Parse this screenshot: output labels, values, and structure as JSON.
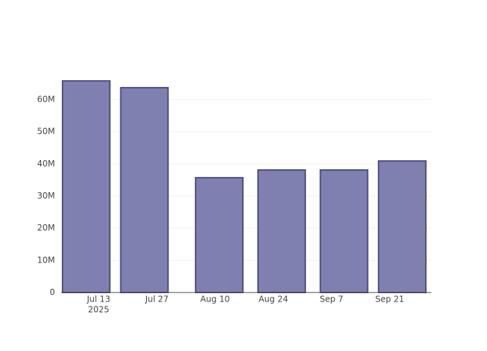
{
  "chart_data": {
    "type": "bar",
    "x": [
      "2025-07-10",
      "2025-07-24",
      "2025-08-11",
      "2025-08-26",
      "2025-09-10",
      "2025-09-24"
    ],
    "values": [
      65800000,
      63700000,
      35700000,
      38100000,
      38100000,
      40900000
    ],
    "color": "#7f7fb0",
    "edge_color": "#4a4a80",
    "xlim": [
      "2025-07-04",
      "2025-10-01"
    ],
    "xticks": [
      {
        "value": "2025-07-13",
        "label": "Jul 13"
      },
      {
        "value": "2025-07-27",
        "label": "Jul 27"
      },
      {
        "value": "2025-08-10",
        "label": "Aug 10"
      },
      {
        "value": "2025-08-24",
        "label": "Aug 24"
      },
      {
        "value": "2025-09-07",
        "label": "Sep 7"
      },
      {
        "value": "2025-09-21",
        "label": "Sep 21"
      }
    ],
    "xtick_year": "2025",
    "ylim": [
      0,
      69300000
    ],
    "yticks": [
      0,
      {
        "value": 10000000,
        "label": "10M"
      },
      {
        "value": 20000000,
        "label": "20M"
      },
      {
        "value": 30000000,
        "label": "30M"
      },
      {
        "value": 40000000,
        "label": "40M"
      },
      {
        "value": 50000000,
        "label": "50M"
      },
      {
        "value": 60000000,
        "label": "60M"
      }
    ],
    "grid": true
  }
}
